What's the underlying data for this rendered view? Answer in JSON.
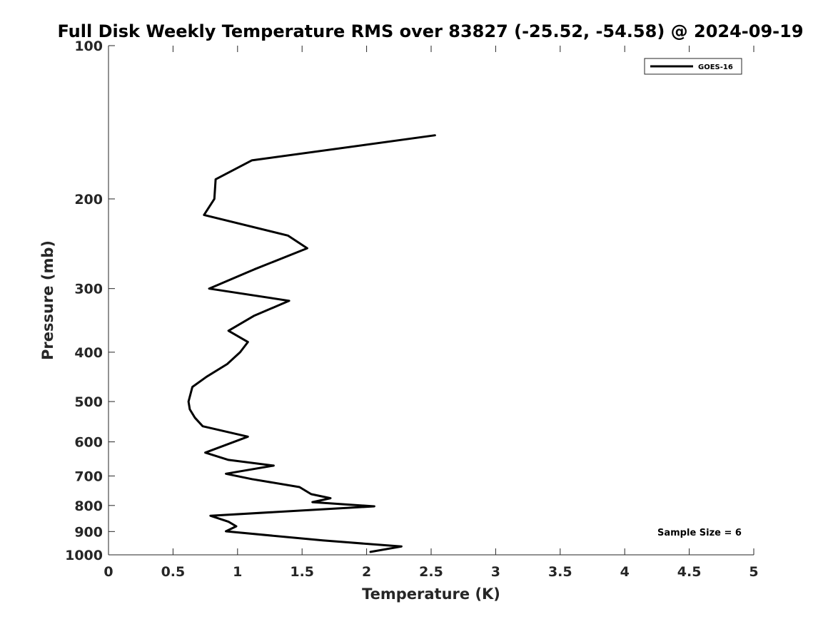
{
  "chart_data": {
    "type": "line",
    "title": "Full Disk Weekly Temperature RMS over 83827 (-25.52, -54.58) @ 2024-09-19",
    "xlabel": "Temperature (K)",
    "ylabel": "Pressure (mb)",
    "xlim": [
      0,
      5
    ],
    "ylim": [
      100,
      1000
    ],
    "y_scale": "log",
    "y_reversed": true,
    "x_ticks": [
      "0",
      "0.5",
      "1",
      "1.5",
      "2",
      "2.5",
      "3",
      "3.5",
      "4",
      "4.5",
      "5"
    ],
    "y_ticks": [
      "100",
      "200",
      "300",
      "400",
      "500",
      "600",
      "700",
      "800",
      "900",
      "1000"
    ],
    "grid": false,
    "legend_position": "top-right",
    "annotation": "Sample Size = 6",
    "series": [
      {
        "name": "GOES-16",
        "color": "#000000",
        "points": [
          {
            "x": 2.53,
            "y": 150
          },
          {
            "x": 1.11,
            "y": 168
          },
          {
            "x": 0.83,
            "y": 183
          },
          {
            "x": 0.82,
            "y": 200
          },
          {
            "x": 0.74,
            "y": 215
          },
          {
            "x": 1.39,
            "y": 236
          },
          {
            "x": 1.54,
            "y": 250
          },
          {
            "x": 1.13,
            "y": 275
          },
          {
            "x": 0.78,
            "y": 300
          },
          {
            "x": 1.4,
            "y": 317
          },
          {
            "x": 1.13,
            "y": 339
          },
          {
            "x": 0.93,
            "y": 363
          },
          {
            "x": 1.08,
            "y": 382
          },
          {
            "x": 1.02,
            "y": 400
          },
          {
            "x": 0.92,
            "y": 422
          },
          {
            "x": 0.76,
            "y": 447
          },
          {
            "x": 0.65,
            "y": 468
          },
          {
            "x": 0.62,
            "y": 500
          },
          {
            "x": 0.63,
            "y": 518
          },
          {
            "x": 0.67,
            "y": 538
          },
          {
            "x": 0.73,
            "y": 559
          },
          {
            "x": 1.08,
            "y": 586
          },
          {
            "x": 0.75,
            "y": 630
          },
          {
            "x": 0.93,
            "y": 651
          },
          {
            "x": 1.28,
            "y": 668
          },
          {
            "x": 0.91,
            "y": 693
          },
          {
            "x": 1.11,
            "y": 710
          },
          {
            "x": 1.48,
            "y": 736
          },
          {
            "x": 1.57,
            "y": 760
          },
          {
            "x": 1.72,
            "y": 774
          },
          {
            "x": 1.58,
            "y": 788
          },
          {
            "x": 2.06,
            "y": 803
          },
          {
            "x": 0.79,
            "y": 838
          },
          {
            "x": 0.93,
            "y": 861
          },
          {
            "x": 0.99,
            "y": 879
          },
          {
            "x": 0.91,
            "y": 899
          },
          {
            "x": 1.66,
            "y": 937
          },
          {
            "x": 2.27,
            "y": 963
          },
          {
            "x": 2.03,
            "y": 987
          }
        ]
      }
    ]
  }
}
